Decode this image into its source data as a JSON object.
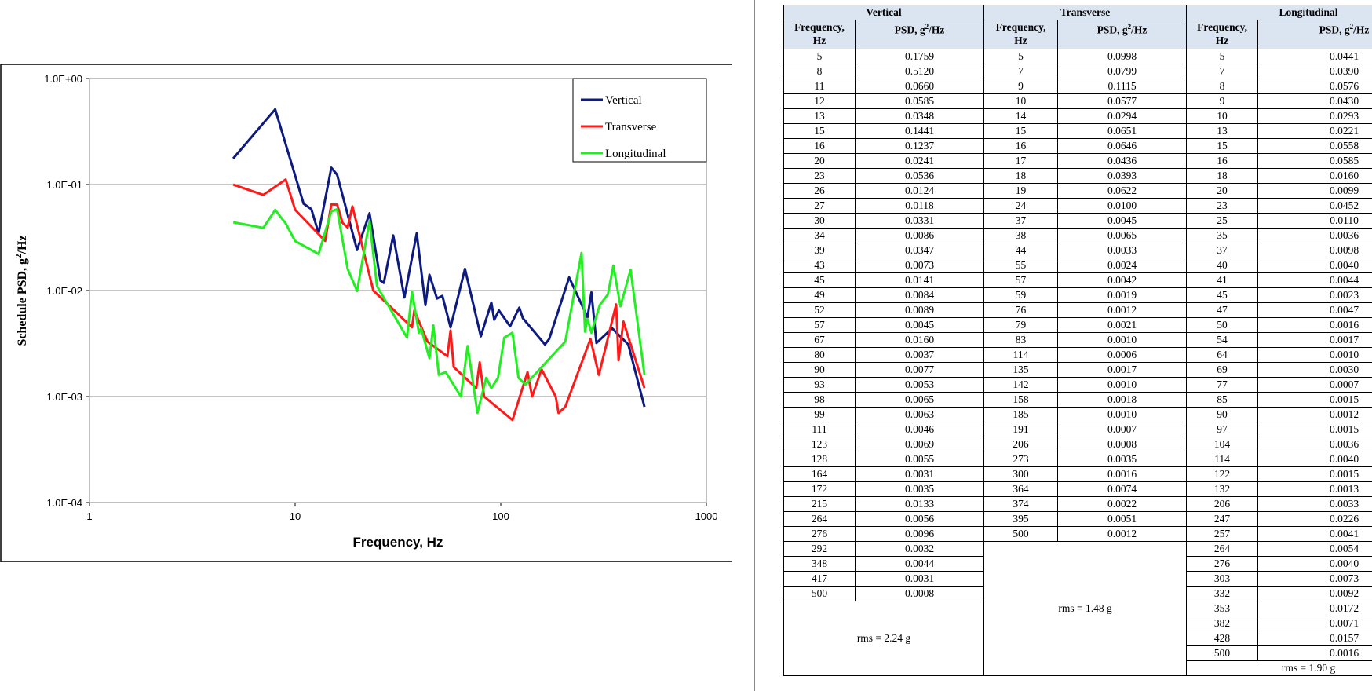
{
  "chart_data": {
    "type": "line",
    "xlabel": "Frequency, Hz",
    "ylabel_main": "Schedule PSD, g",
    "ylabel_sup": "2",
    "ylabel_tail": "/Hz",
    "xscale": "log",
    "yscale": "log",
    "xlim": [
      1,
      1000
    ],
    "ylim": [
      0.0001,
      1
    ],
    "xticks": [
      1,
      10,
      100,
      1000
    ],
    "xtick_labels": [
      "1",
      "10",
      "100",
      "1000"
    ],
    "yticks": [
      0.0001,
      0.001,
      0.01,
      0.1,
      1
    ],
    "ytick_labels": [
      "1.0E-04",
      "1.0E-03",
      "1.0E-02",
      "1.0E-01",
      "1.0E+00"
    ],
    "grid": "horizontal",
    "legend_position": "top-right",
    "series": [
      {
        "name": "Vertical",
        "color": "#0d1a80",
        "x": [
          5,
          8,
          11,
          12,
          13,
          15,
          16,
          20,
          23,
          26,
          27,
          30,
          34,
          39,
          43,
          45,
          49,
          52,
          57,
          67,
          80,
          90,
          93,
          98,
          99,
          111,
          123,
          128,
          164,
          172,
          215,
          264,
          276,
          292,
          348,
          417,
          500
        ],
        "y": [
          0.1759,
          0.512,
          0.066,
          0.0585,
          0.0348,
          0.1441,
          0.1237,
          0.0241,
          0.0536,
          0.0124,
          0.0118,
          0.0331,
          0.0086,
          0.0347,
          0.0073,
          0.0141,
          0.0084,
          0.0089,
          0.0045,
          0.016,
          0.0037,
          0.0077,
          0.0053,
          0.0065,
          0.0063,
          0.0046,
          0.0069,
          0.0055,
          0.0031,
          0.0035,
          0.0133,
          0.0056,
          0.0096,
          0.0032,
          0.0044,
          0.0031,
          0.0008
        ]
      },
      {
        "name": "Transverse",
        "color": "#ff1a1a",
        "x": [
          5,
          7,
          9,
          10,
          14,
          15,
          16,
          17,
          18,
          19,
          24,
          37,
          38,
          44,
          55,
          57,
          59,
          76,
          79,
          83,
          114,
          135,
          142,
          158,
          185,
          191,
          206,
          273,
          300,
          364,
          374,
          395,
          500
        ],
        "y": [
          0.0998,
          0.0799,
          0.1115,
          0.0577,
          0.0294,
          0.0651,
          0.0646,
          0.0436,
          0.0393,
          0.0622,
          0.01,
          0.0045,
          0.0065,
          0.0033,
          0.0024,
          0.0042,
          0.0019,
          0.0012,
          0.0021,
          0.001,
          0.0006,
          0.0017,
          0.001,
          0.0018,
          0.001,
          0.0007,
          0.0008,
          0.0035,
          0.0016,
          0.0074,
          0.0022,
          0.0051,
          0.0012
        ]
      },
      {
        "name": "Longitudinal",
        "color": "#22ee22",
        "x": [
          5,
          7,
          8,
          9,
          10,
          13,
          15,
          16,
          18,
          20,
          23,
          25,
          35,
          37,
          40,
          41,
          45,
          47,
          50,
          54,
          64,
          69,
          77,
          85,
          90,
          97,
          104,
          114,
          122,
          132,
          206,
          247,
          257,
          264,
          276,
          303,
          332,
          353,
          382,
          428,
          500
        ],
        "y": [
          0.0441,
          0.039,
          0.0576,
          0.043,
          0.0293,
          0.0221,
          0.0558,
          0.0585,
          0.016,
          0.0099,
          0.0452,
          0.011,
          0.0036,
          0.0098,
          0.004,
          0.0044,
          0.0023,
          0.0047,
          0.0016,
          0.0017,
          0.001,
          0.003,
          0.0007,
          0.0015,
          0.0012,
          0.0015,
          0.0036,
          0.004,
          0.0015,
          0.0013,
          0.0033,
          0.0226,
          0.0041,
          0.0054,
          0.004,
          0.0073,
          0.0092,
          0.0172,
          0.0071,
          0.0157,
          0.0016
        ]
      }
    ]
  },
  "table": {
    "groups": [
      "Vertical",
      "Transverse",
      "Longitudinal"
    ],
    "col_freq_l1": "Frequency,",
    "col_freq_l2": "Hz",
    "col_psd": "PSD, g",
    "col_psd_sup": "2",
    "col_psd_tail": "/Hz",
    "vertical_freq": [
      "5",
      "8",
      "11",
      "12",
      "13",
      "15",
      "16",
      "20",
      "23",
      "26",
      "27",
      "30",
      "34",
      "39",
      "43",
      "45",
      "49",
      "52",
      "57",
      "67",
      "80",
      "90",
      "93",
      "98",
      "99",
      "111",
      "123",
      "128",
      "164",
      "172",
      "215",
      "264",
      "276",
      "292",
      "348",
      "417",
      "500"
    ],
    "vertical_psd": [
      "0.1759",
      "0.5120",
      "0.0660",
      "0.0585",
      "0.0348",
      "0.1441",
      "0.1237",
      "0.0241",
      "0.0536",
      "0.0124",
      "0.0118",
      "0.0331",
      "0.0086",
      "0.0347",
      "0.0073",
      "0.0141",
      "0.0084",
      "0.0089",
      "0.0045",
      "0.0160",
      "0.0037",
      "0.0077",
      "0.0053",
      "0.0065",
      "0.0063",
      "0.0046",
      "0.0069",
      "0.0055",
      "0.0031",
      "0.0035",
      "0.0133",
      "0.0056",
      "0.0096",
      "0.0032",
      "0.0044",
      "0.0031",
      "0.0008"
    ],
    "transverse_freq": [
      "5",
      "7",
      "9",
      "10",
      "14",
      "15",
      "16",
      "17",
      "18",
      "19",
      "24",
      "37",
      "38",
      "44",
      "55",
      "57",
      "59",
      "76",
      "79",
      "83",
      "114",
      "135",
      "142",
      "158",
      "185",
      "191",
      "206",
      "273",
      "300",
      "364",
      "374",
      "395",
      "500"
    ],
    "transverse_psd": [
      "0.0998",
      "0.0799",
      "0.1115",
      "0.0577",
      "0.0294",
      "0.0651",
      "0.0646",
      "0.0436",
      "0.0393",
      "0.0622",
      "0.0100",
      "0.0045",
      "0.0065",
      "0.0033",
      "0.0024",
      "0.0042",
      "0.0019",
      "0.0012",
      "0.0021",
      "0.0010",
      "0.0006",
      "0.0017",
      "0.0010",
      "0.0018",
      "0.0010",
      "0.0007",
      "0.0008",
      "0.0035",
      "0.0016",
      "0.0074",
      "0.0022",
      "0.0051",
      "0.0012"
    ],
    "longitudinal_freq": [
      "5",
      "7",
      "8",
      "9",
      "10",
      "13",
      "15",
      "16",
      "18",
      "20",
      "23",
      "25",
      "35",
      "37",
      "40",
      "41",
      "45",
      "47",
      "50",
      "54",
      "64",
      "69",
      "77",
      "85",
      "90",
      "97",
      "104",
      "114",
      "122",
      "132",
      "206",
      "247",
      "257",
      "264",
      "276",
      "303",
      "332",
      "353",
      "382",
      "428",
      "500"
    ],
    "longitudinal_psd": [
      "0.0441",
      "0.0390",
      "0.0576",
      "0.0430",
      "0.0293",
      "0.0221",
      "0.0558",
      "0.0585",
      "0.0160",
      "0.0099",
      "0.0452",
      "0.0110",
      "0.0036",
      "0.0098",
      "0.0040",
      "0.0044",
      "0.0023",
      "0.0047",
      "0.0016",
      "0.0017",
      "0.0010",
      "0.0030",
      "0.0007",
      "0.0015",
      "0.0012",
      "0.0015",
      "0.0036",
      "0.0040",
      "0.0015",
      "0.0013",
      "0.0033",
      "0.0226",
      "0.0041",
      "0.0054",
      "0.0040",
      "0.0073",
      "0.0092",
      "0.0172",
      "0.0071",
      "0.0157",
      "0.0016"
    ],
    "vertical_rms": "rms = 2.24 g",
    "transverse_rms": "rms = 1.48 g",
    "longitudinal_rms": "rms = 1.90 g"
  }
}
